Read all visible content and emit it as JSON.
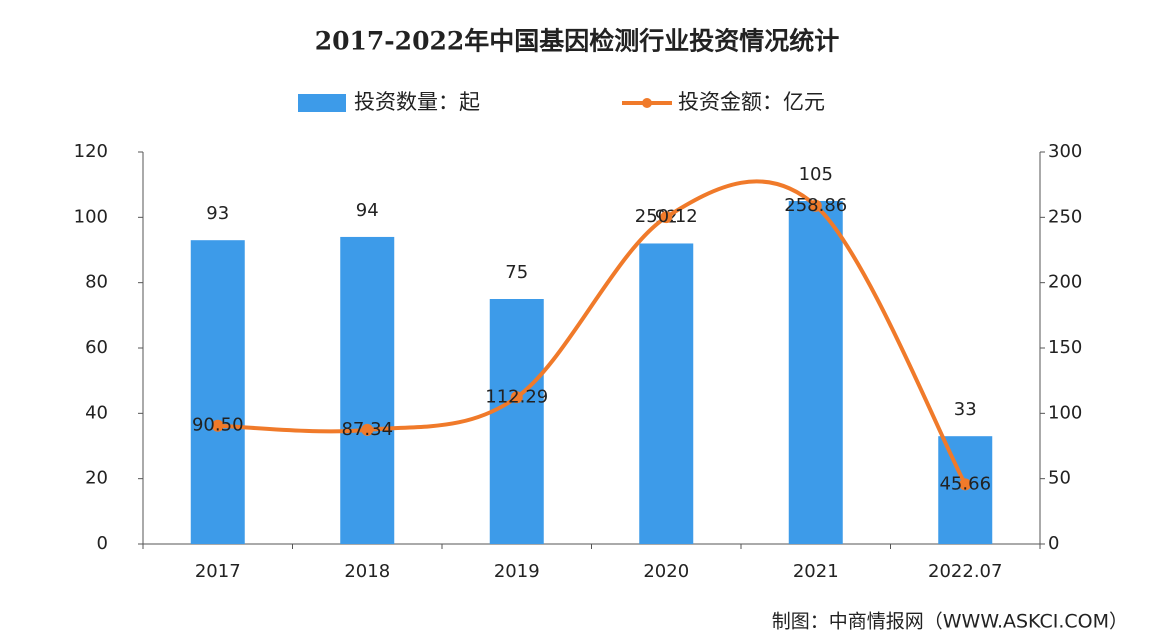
{
  "chart_data": {
    "type": "bar",
    "title": "2017-2022年中国基因检测行业投资情况统计",
    "categories": [
      "2017",
      "2018",
      "2019",
      "2020",
      "2021",
      "2022.07"
    ],
    "series": [
      {
        "name": "投资数量：起",
        "type": "bar",
        "color": "#3d9be9",
        "values": [
          93,
          94,
          75,
          92,
          105,
          33
        ]
      },
      {
        "name": "投资金额：亿元",
        "type": "line",
        "axis": "y2",
        "color": "#f07a2a",
        "values": [
          90.5,
          87.34,
          112.29,
          250.12,
          258.86,
          45.66
        ],
        "value_labels": [
          "90.50",
          "87.34",
          "112.29",
          "250.12",
          "258.86",
          "45.66"
        ]
      }
    ],
    "ylim": [
      0,
      120
    ],
    "yticks": [
      0,
      20,
      40,
      60,
      80,
      100,
      120
    ],
    "y2lim": [
      0,
      300
    ],
    "y2ticks": [
      0,
      50,
      100,
      150,
      200,
      250,
      300
    ],
    "source": "制图：中商情报网（WWW.ASKCI.COM）"
  }
}
